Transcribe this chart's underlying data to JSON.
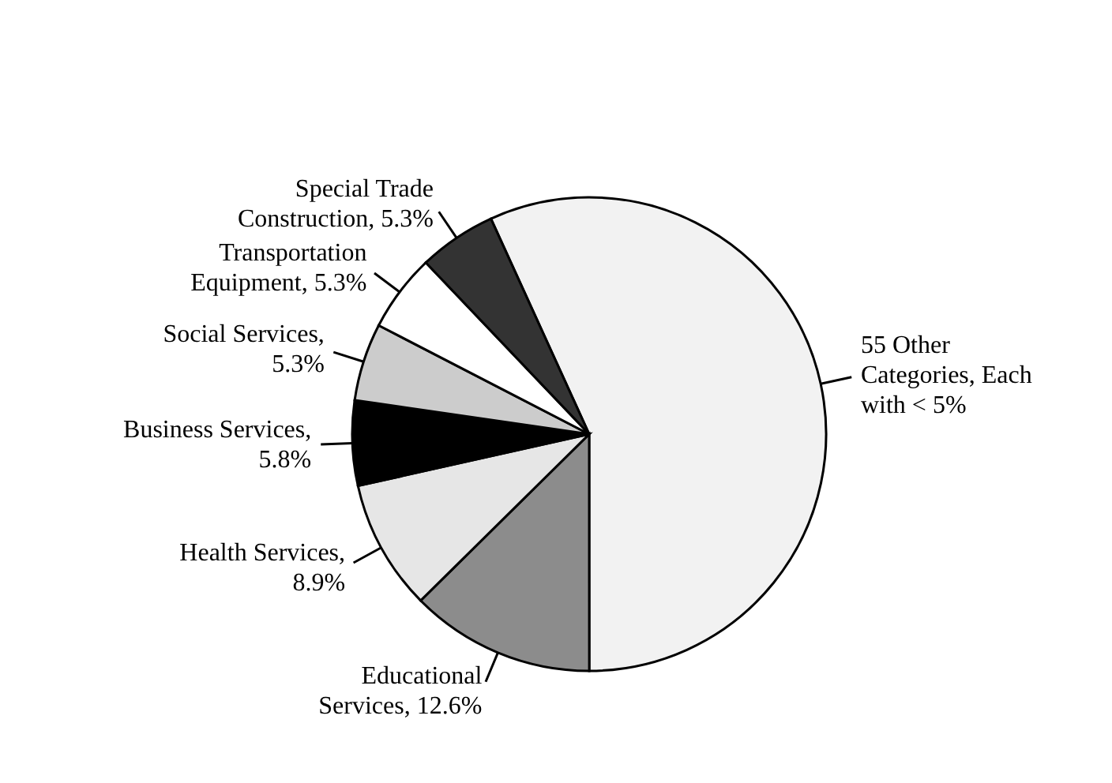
{
  "chart_data": {
    "type": "pie",
    "categories": [
      "55 Other Categories, Each with < 5%",
      "Educational Services, 12.6%",
      "Health Services, 8.9%",
      "Business Services, 5.8%",
      "Social Services, 5.3%",
      "Transportation Equipment, 5.3%",
      "Special Trade Construction, 5.3%"
    ],
    "values": [
      56.8,
      12.6,
      8.9,
      5.8,
      5.3,
      5.3,
      5.3
    ],
    "colors": [
      "#f2f2f2",
      "#8c8c8c",
      "#e6e6e6",
      "#000000",
      "#cccccc",
      "#ffffff",
      "#333333"
    ]
  }
}
